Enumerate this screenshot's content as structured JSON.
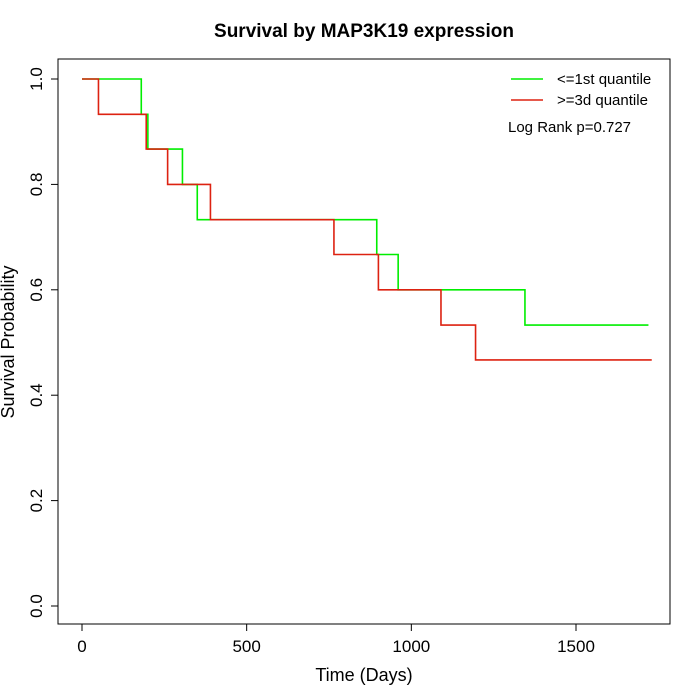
{
  "chart_data": {
    "type": "line",
    "title": "Survival by MAP3K19 expression",
    "xlabel": "Time (Days)",
    "ylabel": "Survival Probability",
    "xlim": [
      0,
      1800
    ],
    "ylim": [
      0,
      1.0
    ],
    "xticks": [
      0,
      500,
      1000,
      1500
    ],
    "yticks": [
      0.0,
      0.2,
      0.4,
      0.6,
      0.8,
      1.0
    ],
    "xtick_labels": [
      "0",
      "500",
      "1000",
      "1500"
    ],
    "ytick_labels": [
      "0.0",
      "0.2",
      "0.4",
      "0.6",
      "0.8",
      "1.0"
    ],
    "grid": false,
    "legend_position": "top-right",
    "annotation": "Log Rank p=0.727",
    "series": [
      {
        "name": "<=1st quantile",
        "color": "#00ee00",
        "step": true,
        "x": [
          0,
          180,
          200,
          305,
          350,
          895,
          960,
          1345,
          1720
        ],
        "y": [
          1.0,
          0.933,
          0.867,
          0.8,
          0.733,
          0.667,
          0.6,
          0.533,
          0.533
        ]
      },
      {
        "name": ">=3d quantile",
        "color": "#dd2211",
        "step": true,
        "x": [
          0,
          50,
          195,
          260,
          390,
          765,
          900,
          1090,
          1195,
          1730
        ],
        "y": [
          1.0,
          0.933,
          0.867,
          0.8,
          0.733,
          0.667,
          0.6,
          0.533,
          0.467,
          0.467
        ]
      }
    ]
  }
}
